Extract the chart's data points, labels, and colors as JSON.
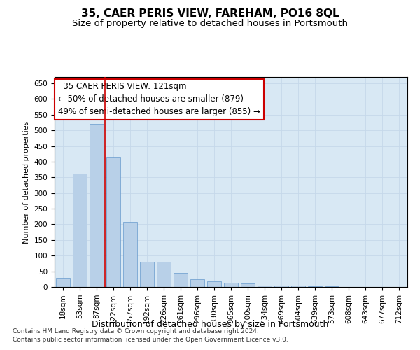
{
  "title": "35, CAER PERIS VIEW, FAREHAM, PO16 8QL",
  "subtitle": "Size of property relative to detached houses in Portsmouth",
  "xlabel": "Distribution of detached houses by size in Portsmouth",
  "ylabel": "Number of detached properties",
  "categories": [
    "18sqm",
    "53sqm",
    "87sqm",
    "122sqm",
    "157sqm",
    "192sqm",
    "226sqm",
    "261sqm",
    "296sqm",
    "330sqm",
    "365sqm",
    "400sqm",
    "434sqm",
    "469sqm",
    "504sqm",
    "539sqm",
    "573sqm",
    "608sqm",
    "643sqm",
    "677sqm",
    "712sqm"
  ],
  "values": [
    30,
    362,
    520,
    415,
    207,
    80,
    80,
    45,
    25,
    18,
    14,
    12,
    5,
    5,
    5,
    3,
    3,
    1,
    1,
    1,
    1
  ],
  "bar_color": "#b8d0e8",
  "bar_edge_color": "#6699cc",
  "grid_color": "#c5d8ea",
  "background_color": "#d8e8f4",
  "annotation_line1": "  35 CAER PERIS VIEW: 121sqm",
  "annotation_line2": "← 50% of detached houses are smaller (879)",
  "annotation_line3": "49% of semi-detached houses are larger (855) →",
  "annotation_box_facecolor": "#ffffff",
  "annotation_box_edgecolor": "#cc0000",
  "vline_x": 2.5,
  "vline_color": "#cc0000",
  "footer_line1": "Contains HM Land Registry data © Crown copyright and database right 2024.",
  "footer_line2": "Contains public sector information licensed under the Open Government Licence v3.0.",
  "ylim": [
    0,
    670
  ],
  "yticks": [
    0,
    50,
    100,
    150,
    200,
    250,
    300,
    350,
    400,
    450,
    500,
    550,
    600,
    650
  ],
  "title_fontsize": 11,
  "subtitle_fontsize": 9.5,
  "xlabel_fontsize": 9,
  "ylabel_fontsize": 8,
  "tick_fontsize": 7.5,
  "annotation_fontsize": 8.5,
  "footer_fontsize": 6.5
}
